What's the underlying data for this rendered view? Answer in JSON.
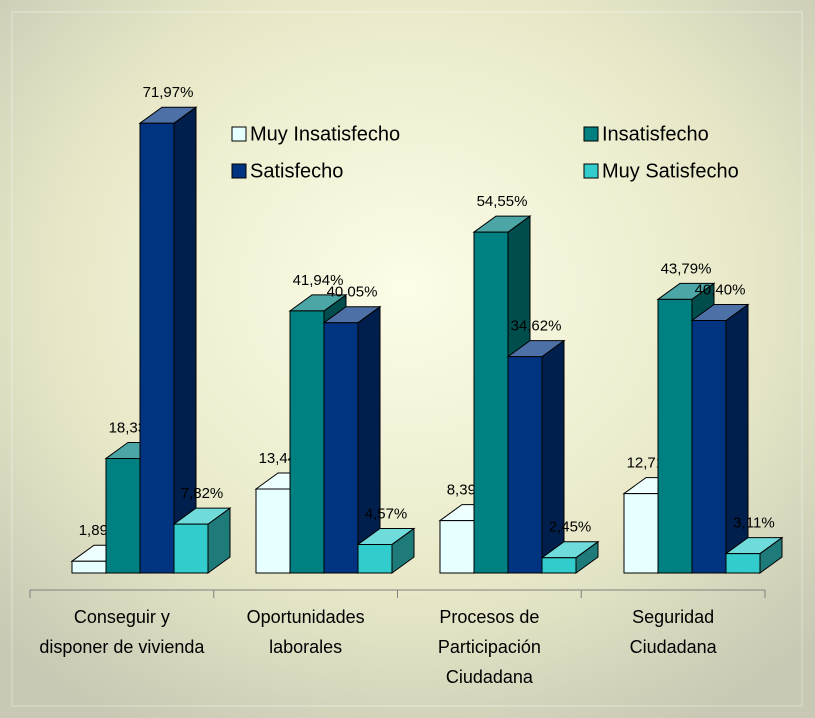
{
  "chart_data": {
    "type": "bar3d",
    "categories": [
      "Conseguir y disponer de vivienda",
      "Oportunidades laborales",
      "Procesos de Participación Ciudadana",
      "Seguridad Ciudadana"
    ],
    "series": [
      {
        "name": "Muy Insatisfecho",
        "color": "#e6ffff",
        "values": [
          1.89,
          13.44,
          8.39,
          12.71
        ],
        "value_labels": [
          "1,89%",
          "13,44%",
          "8,39%",
          "12,71%"
        ]
      },
      {
        "name": "Insatisfecho",
        "color": "#008080",
        "values": [
          18.33,
          41.94,
          54.55,
          43.79
        ],
        "value_labels": [
          "18,33%",
          "41,94%",
          "54,55%",
          "43,79%"
        ]
      },
      {
        "name": "Satisfecho",
        "color": "#003380",
        "values": [
          71.97,
          40.05,
          34.62,
          40.4
        ],
        "value_labels": [
          "71,97%",
          "40,05%",
          "34,62%",
          "40,40%"
        ]
      },
      {
        "name": "Muy Satisfecho",
        "color": "#33cccc",
        "values": [
          7.82,
          4.57,
          2.45,
          3.11
        ],
        "value_labels": [
          "7,82%",
          "4,57%",
          "2,45%",
          "3,11%"
        ]
      }
    ],
    "legend": "top-right"
  }
}
